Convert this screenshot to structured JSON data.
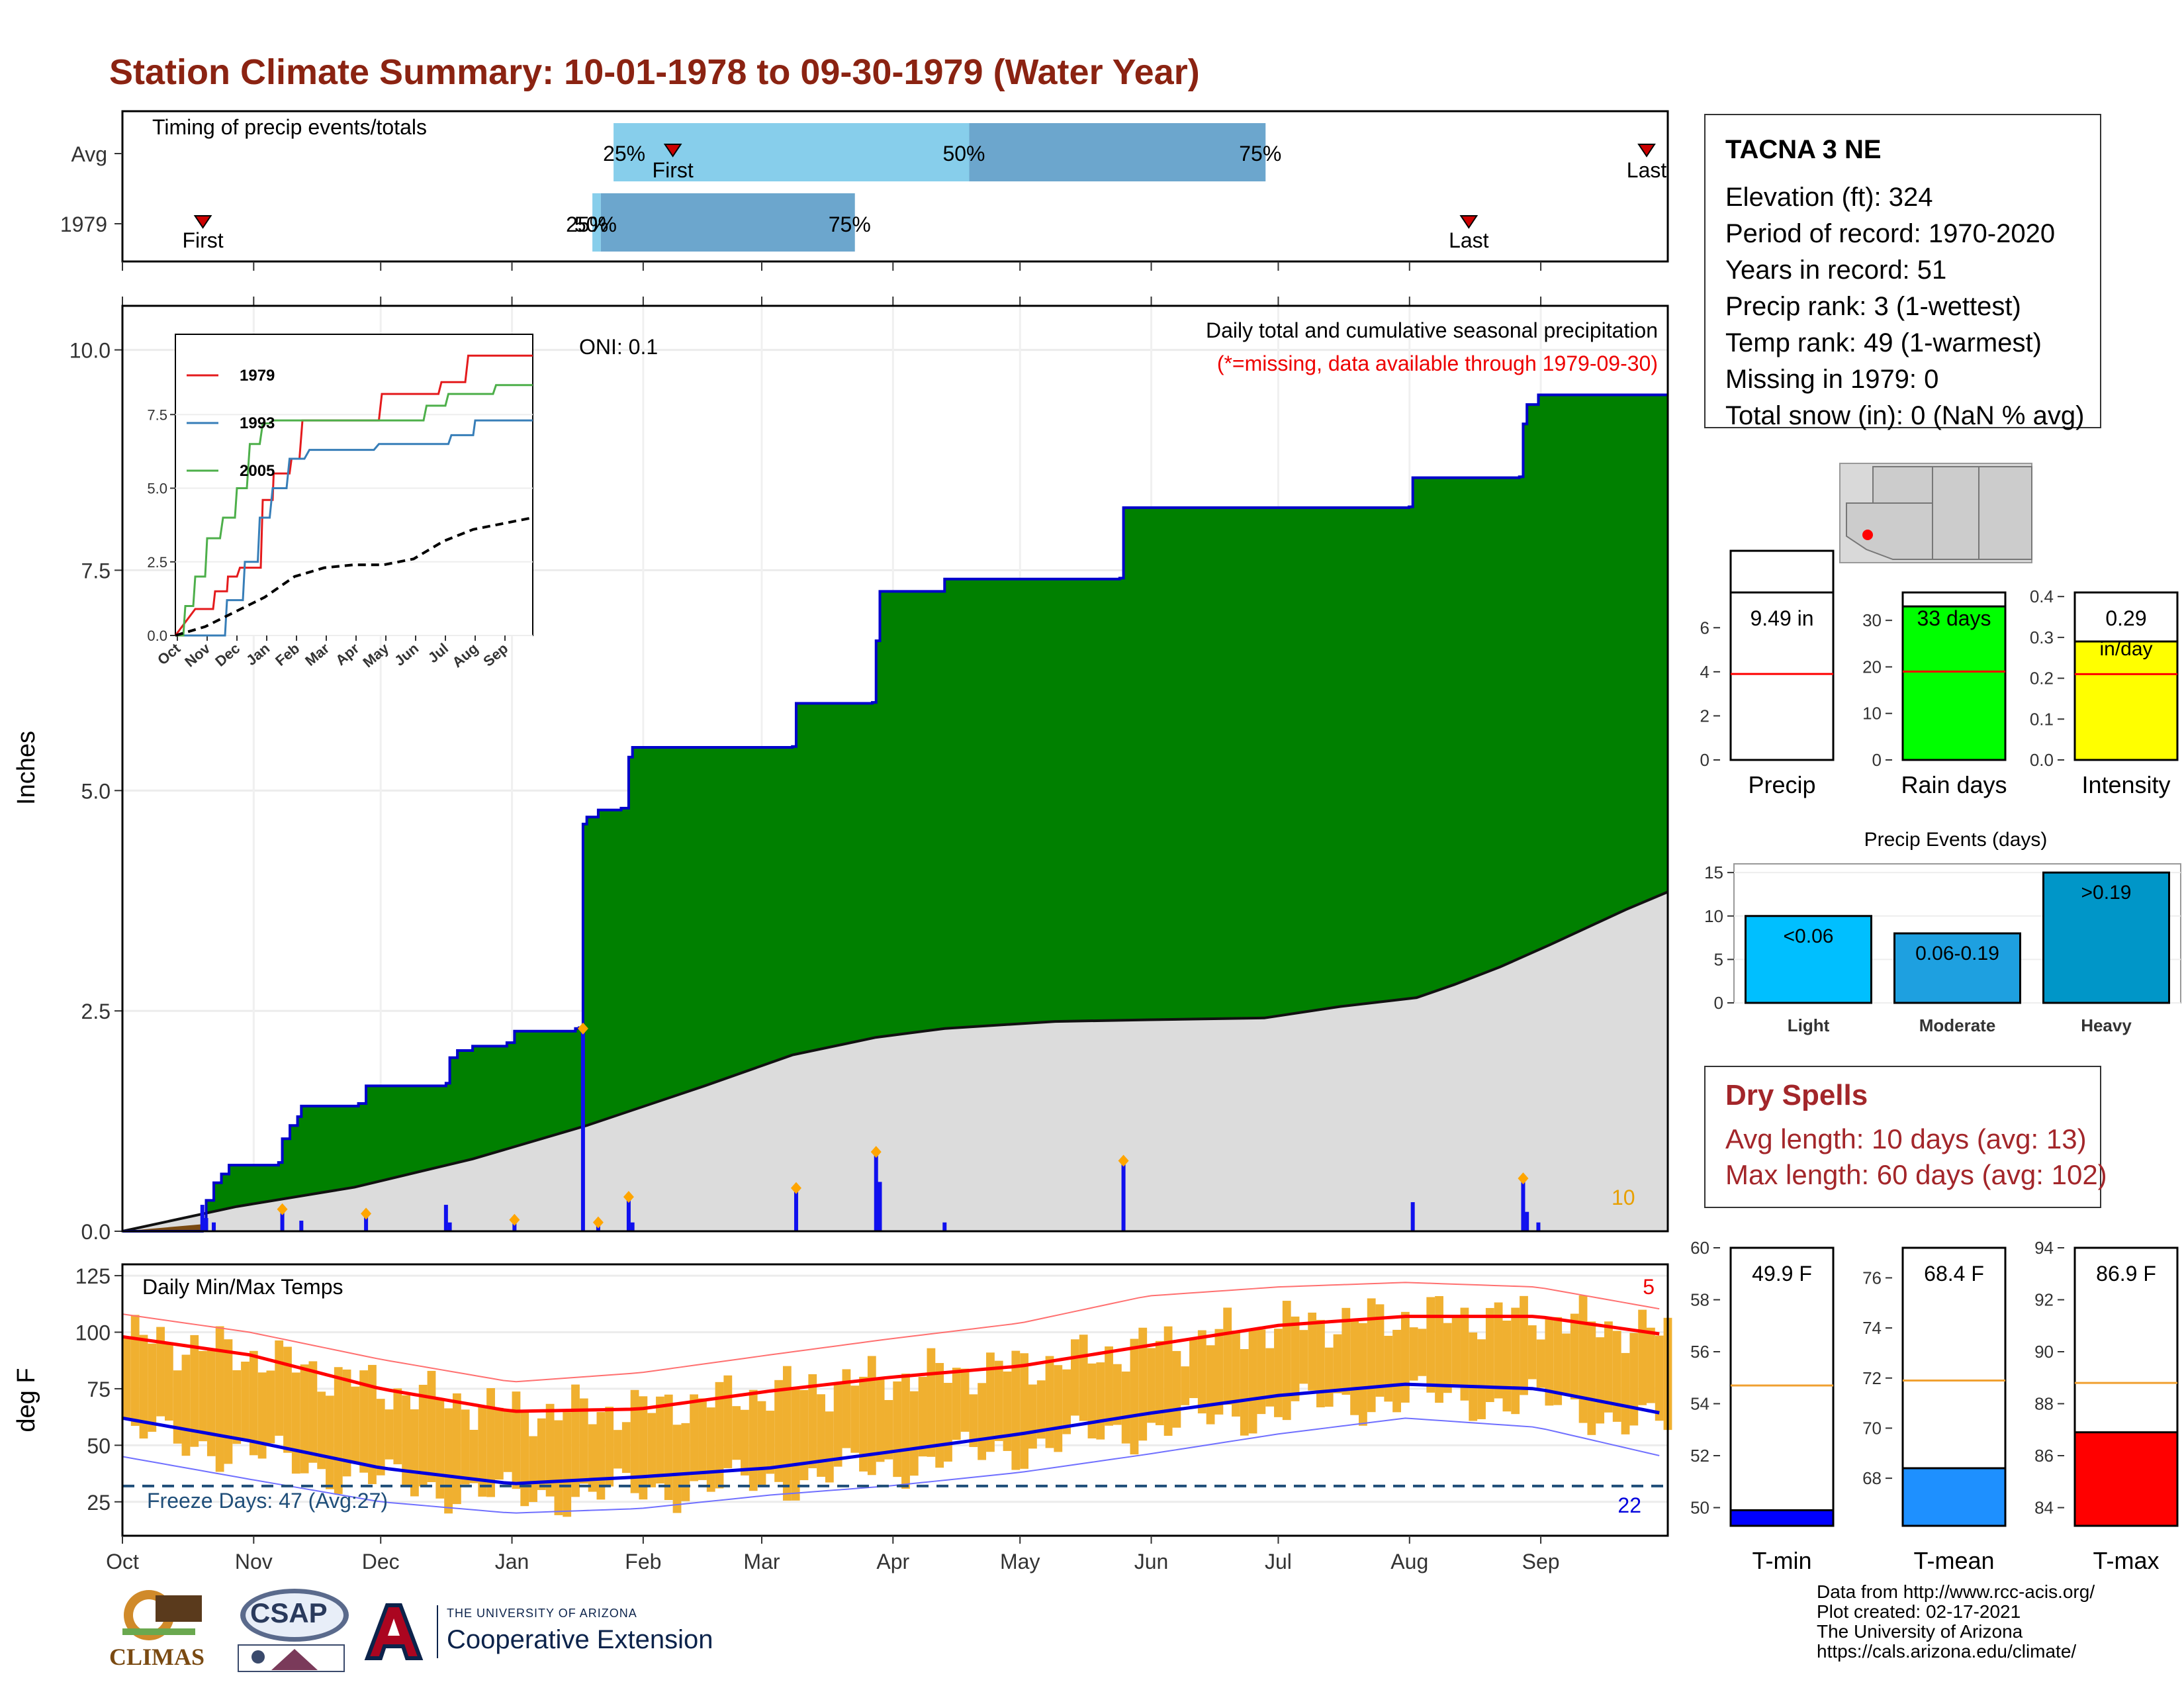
{
  "title": "Station Climate Summary: 10-01-1978 to 09-30-1979 (Water Year)",
  "station": {
    "name": "TACNA 3 NE",
    "lines": [
      "Elevation (ft): 324",
      "Period of record: 1970-2020",
      "Years in record: 51",
      "Precip rank: 3 (1-wettest)",
      "Temp rank: 49 (1-warmest)",
      "Missing in 1979: 0",
      "Total snow (in): 0 (NaN % avg)"
    ]
  },
  "dry_spells": {
    "title": "Dry Spells",
    "avg": "Avg length: 10 days (avg: 13)",
    "max": "Max length: 60 days (avg: 102)"
  },
  "credits": [
    "Data from http://www.rcc-acis.org/",
    "Plot created: 02-17-2021",
    "The University of Arizona",
    "https://cals.arizona.edu/climate/"
  ],
  "logos": {
    "climas": "CLIMAS",
    "csap": "CSAP",
    "ua_small": "THE UNIVERSITY OF ARIZONA",
    "ua_big": "Cooperative Extension"
  },
  "colors": {
    "title": "#8b2312",
    "precip_fill": "#008000",
    "precip_line": "#0000cc",
    "avg_fill": "#dcdcdc",
    "daily_bar": "#1010ee",
    "marker": "#ffa500",
    "temp_bar": "#f0b030",
    "tmax_avg": "#ff0000",
    "tmin_avg": "#0000dd",
    "rain_days": "#00ff00",
    "intensity": "#ffff00",
    "light": "#00bfff",
    "moderate": "#1ea0e0",
    "heavy": "#0096c8",
    "tmin_bar": "#0000ff",
    "tmean_bar": "#1e90ff",
    "tmax_bar": "#ff0000"
  },
  "chart_data": [
    {
      "id": "timing",
      "type": "bar",
      "title": "Timing of precip events/totals",
      "categories": [
        "Avg",
        "1979"
      ],
      "x_ticks": [
        "Oct",
        "Nov",
        "Dec",
        "Jan",
        "Feb",
        "Mar",
        "Apr",
        "May",
        "Jun",
        "Jul",
        "Aug",
        "Sep"
      ],
      "avg": {
        "first": "First",
        "last": "Last",
        "p25": "25%",
        "p50": "50%",
        "p75": "75%"
      },
      "year": {
        "first": "First",
        "last": "Last",
        "p25": "25%",
        "p50": "50%",
        "p75": "75%"
      },
      "markers_day_of_water_year": {
        "avg_first": 130,
        "avg_last": 360,
        "avg_p25": 116,
        "avg_p50": 200,
        "avg_p75": 270,
        "y_first": 19,
        "y_last": 318,
        "y_p25": 111,
        "y_p50": 113,
        "y_p75": 173
      }
    },
    {
      "id": "precip-main",
      "type": "area",
      "title": "Daily total and cumulative seasonal precipitation",
      "subtitle": "(*=missing, data available through 1979-09-30)",
      "oni": "ONI: 0.1",
      "ylabel": "Inches",
      "ylim": [
        0,
        10.5
      ],
      "y_ticks": [
        "0.0",
        "2.5",
        "5.0",
        "7.5",
        "10.0"
      ],
      "x_ticks": [
        "Oct",
        "Nov",
        "Dec",
        "Jan",
        "Feb",
        "Mar",
        "Apr",
        "May",
        "Jun",
        "Jul",
        "Aug",
        "Sep"
      ],
      "corner_label": "10",
      "cumulative_1979": [
        [
          0,
          0
        ],
        [
          21,
          0.05
        ],
        [
          22,
          0.35
        ],
        [
          24,
          0.55
        ],
        [
          26,
          0.65
        ],
        [
          28,
          0.75
        ],
        [
          41,
          0.78
        ],
        [
          42,
          1.05
        ],
        [
          44,
          1.2
        ],
        [
          46,
          1.3
        ],
        [
          47,
          1.42
        ],
        [
          62,
          1.45
        ],
        [
          64,
          1.65
        ],
        [
          85,
          1.68
        ],
        [
          86,
          1.97
        ],
        [
          88,
          2.05
        ],
        [
          92,
          2.1
        ],
        [
          101,
          2.14
        ],
        [
          103,
          2.27
        ],
        [
          119,
          2.3
        ],
        [
          120,
          2.31
        ],
        [
          121,
          4.62
        ],
        [
          122,
          4.7
        ],
        [
          125,
          4.78
        ],
        [
          131,
          4.8
        ],
        [
          133,
          5.38
        ],
        [
          134,
          5.49
        ],
        [
          176,
          5.5
        ],
        [
          177,
          5.99
        ],
        [
          197,
          6.0
        ],
        [
          198,
          6.7
        ],
        [
          199,
          7.26
        ],
        [
          216,
          7.4
        ],
        [
          262,
          7.41
        ],
        [
          263,
          8.21
        ],
        [
          338,
          8.22
        ],
        [
          339,
          8.55
        ],
        [
          367,
          8.56
        ],
        [
          368,
          9.16
        ],
        [
          369,
          9.38
        ],
        [
          372,
          9.49
        ],
        [
          406,
          9.49
        ]
      ],
      "average_cumulative": [
        [
          0,
          0
        ],
        [
          30,
          0.28
        ],
        [
          61,
          0.5
        ],
        [
          92,
          0.82
        ],
        [
          122,
          1.2
        ],
        [
          153,
          1.65
        ],
        [
          176,
          2.0
        ],
        [
          198,
          2.2
        ],
        [
          216,
          2.3
        ],
        [
          245,
          2.38
        ],
        [
          270,
          2.4
        ],
        [
          300,
          2.42
        ],
        [
          320,
          2.55
        ],
        [
          340,
          2.65
        ],
        [
          350,
          2.8
        ],
        [
          362,
          3.0
        ],
        [
          375,
          3.25
        ],
        [
          385,
          3.45
        ],
        [
          395,
          3.65
        ],
        [
          406,
          3.85
        ]
      ],
      "daily_1979": [
        [
          21,
          0.3
        ],
        [
          22,
          0.15
        ],
        [
          24,
          0.1
        ],
        [
          42,
          0.25
        ],
        [
          47,
          0.12
        ],
        [
          64,
          0.2
        ],
        [
          85,
          0.3
        ],
        [
          86,
          0.1
        ],
        [
          103,
          0.13
        ],
        [
          121,
          2.3
        ],
        [
          125,
          0.1
        ],
        [
          133,
          0.39
        ],
        [
          134,
          0.1
        ],
        [
          177,
          0.49
        ],
        [
          198,
          0.9
        ],
        [
          199,
          0.56
        ],
        [
          216,
          0.1
        ],
        [
          263,
          0.8
        ],
        [
          339,
          0.33
        ],
        [
          368,
          0.6
        ],
        [
          369,
          0.22
        ],
        [
          372,
          0.1
        ]
      ],
      "markers": [
        42,
        64,
        103,
        121,
        125,
        133,
        177,
        198,
        263,
        368
      ]
    },
    {
      "id": "precip-inset",
      "type": "line",
      "ylim": [
        0,
        10
      ],
      "y_ticks": [
        "0.0",
        "2.5",
        "5.0",
        "7.5"
      ],
      "x_ticks": [
        "Oct",
        "Nov",
        "Dec",
        "Jan",
        "Feb",
        "Mar",
        "Apr",
        "May",
        "Jun",
        "Jul",
        "Aug",
        "Sep"
      ],
      "series": [
        {
          "name": "1979",
          "color": "#e41a1c",
          "points": [
            [
              0,
              0
            ],
            [
              20,
              0.9
            ],
            [
              38,
              0.9
            ],
            [
              40,
              1.5
            ],
            [
              52,
              1.5
            ],
            [
              53,
              2.0
            ],
            [
              62,
              2.0
            ],
            [
              65,
              2.3
            ],
            [
              86,
              2.3
            ],
            [
              88,
              4.6
            ],
            [
              98,
              4.6
            ],
            [
              99,
              5.5
            ],
            [
              115,
              5.5
            ],
            [
              117,
              6.0
            ],
            [
              125,
              6.0
            ],
            [
              128,
              7.3
            ],
            [
              205,
              7.3
            ],
            [
              208,
              8.2
            ],
            [
              265,
              8.2
            ],
            [
              268,
              8.6
            ],
            [
              292,
              8.6
            ],
            [
              295,
              9.5
            ],
            [
              360,
              9.5
            ]
          ]
        },
        {
          "name": "1993",
          "color": "#377eb8",
          "points": [
            [
              0,
              0
            ],
            [
              50,
              0
            ],
            [
              52,
              1.2
            ],
            [
              68,
              1.2
            ],
            [
              70,
              2.5
            ],
            [
              83,
              2.5
            ],
            [
              85,
              4.0
            ],
            [
              95,
              4.0
            ],
            [
              98,
              5.0
            ],
            [
              112,
              5.0
            ],
            [
              115,
              6.0
            ],
            [
              130,
              6.0
            ],
            [
              135,
              6.3
            ],
            [
              200,
              6.3
            ],
            [
              205,
              6.5
            ],
            [
              275,
              6.5
            ],
            [
              278,
              6.8
            ],
            [
              300,
              6.8
            ],
            [
              302,
              7.3
            ],
            [
              360,
              7.3
            ]
          ]
        },
        {
          "name": "2005",
          "color": "#4daf4a",
          "points": [
            [
              0,
              0
            ],
            [
              8,
              0
            ],
            [
              10,
              1.0
            ],
            [
              18,
              1.0
            ],
            [
              20,
              2.0
            ],
            [
              30,
              2.0
            ],
            [
              32,
              3.3
            ],
            [
              45,
              3.3
            ],
            [
              48,
              4.0
            ],
            [
              60,
              4.0
            ],
            [
              62,
              5.0
            ],
            [
              72,
              5.0
            ],
            [
              75,
              6.5
            ],
            [
              85,
              6.5
            ],
            [
              88,
              7.2
            ],
            [
              95,
              7.2
            ],
            [
              98,
              7.3
            ],
            [
              250,
              7.3
            ],
            [
              253,
              7.8
            ],
            [
              272,
              7.8
            ],
            [
              275,
              8.2
            ],
            [
              320,
              8.2
            ],
            [
              323,
              8.5
            ],
            [
              360,
              8.5
            ]
          ]
        },
        {
          "name": "",
          "color": "#000000",
          "dashed": true,
          "points": [
            [
              0,
              0
            ],
            [
              30,
              0.3
            ],
            [
              60,
              0.8
            ],
            [
              90,
              1.3
            ],
            [
              120,
              2.0
            ],
            [
              150,
              2.3
            ],
            [
              180,
              2.4
            ],
            [
              210,
              2.4
            ],
            [
              240,
              2.6
            ],
            [
              270,
              3.2
            ],
            [
              300,
              3.6
            ],
            [
              330,
              3.8
            ],
            [
              360,
              4.0
            ]
          ]
        }
      ]
    },
    {
      "id": "temps",
      "type": "bar",
      "title": "Daily Min/Max Temps",
      "ylabel": "deg F",
      "ylim": [
        10,
        130
      ],
      "y_ticks": [
        "25",
        "50",
        "75",
        "100",
        "125"
      ],
      "x_ticks": [
        "Oct",
        "Nov",
        "Dec",
        "Jan",
        "Feb",
        "Mar",
        "Apr",
        "May",
        "Jun",
        "Jul",
        "Aug",
        "Sep"
      ],
      "freeze_label": "Freeze Days: 47 (Avg:27)",
      "freeze_line": 32,
      "hot_count": "5",
      "cold_count": "22",
      "avg_max": [
        [
          0,
          98
        ],
        [
          30,
          90
        ],
        [
          61,
          75
        ],
        [
          92,
          65
        ],
        [
          122,
          66
        ],
        [
          153,
          74
        ],
        [
          181,
          80
        ],
        [
          212,
          85
        ],
        [
          242,
          94
        ],
        [
          273,
          103
        ],
        [
          303,
          107
        ],
        [
          334,
          107
        ],
        [
          364,
          99
        ]
      ],
      "avg_min": [
        [
          0,
          62
        ],
        [
          30,
          52
        ],
        [
          61,
          40
        ],
        [
          92,
          33
        ],
        [
          122,
          36
        ],
        [
          153,
          40
        ],
        [
          181,
          47
        ],
        [
          212,
          55
        ],
        [
          242,
          64
        ],
        [
          273,
          72
        ],
        [
          303,
          77
        ],
        [
          334,
          75
        ],
        [
          364,
          64
        ]
      ],
      "rec_max": [
        [
          0,
          108
        ],
        [
          30,
          100
        ],
        [
          61,
          88
        ],
        [
          92,
          78
        ],
        [
          122,
          82
        ],
        [
          153,
          90
        ],
        [
          181,
          97
        ],
        [
          212,
          104
        ],
        [
          242,
          116
        ],
        [
          273,
          120
        ],
        [
          303,
          122
        ],
        [
          334,
          120
        ],
        [
          364,
          110
        ]
      ],
      "rec_min": [
        [
          0,
          45
        ],
        [
          30,
          35
        ],
        [
          61,
          25
        ],
        [
          92,
          20
        ],
        [
          122,
          22
        ],
        [
          153,
          28
        ],
        [
          181,
          32
        ],
        [
          212,
          38
        ],
        [
          242,
          46
        ],
        [
          273,
          55
        ],
        [
          303,
          62
        ],
        [
          334,
          58
        ],
        [
          364,
          45
        ]
      ]
    },
    {
      "id": "precip-bar",
      "type": "bar",
      "label": "Precip",
      "value": 9.49,
      "value_label": "9.49 in",
      "avg": 3.9,
      "ylim": [
        0,
        7.6
      ],
      "y_ticks": [
        "0",
        "2",
        "4",
        "6"
      ]
    },
    {
      "id": "raindays-bar",
      "type": "bar",
      "label": "Rain days",
      "value": 33,
      "value_label": "33 days",
      "avg": 19,
      "ylim": [
        0,
        36
      ],
      "y_ticks": [
        "0",
        "10",
        "20",
        "30"
      ]
    },
    {
      "id": "intensity-bar",
      "type": "bar",
      "label": "Intensity",
      "value": 0.29,
      "value_label": "0.29",
      "unit_label": "in/day",
      "avg": 0.21,
      "ylim": [
        0,
        0.41
      ],
      "y_ticks": [
        "0.0",
        "0.1",
        "0.2",
        "0.3",
        "0.4"
      ]
    },
    {
      "id": "events",
      "type": "bar",
      "title": "Precip Events (days)",
      "categories": [
        "Light",
        "Moderate",
        "Heavy"
      ],
      "values": [
        10,
        8,
        15
      ],
      "bar_labels": [
        "<0.06",
        "0.06-0.19",
        ">0.19"
      ],
      "ylim": [
        0,
        16
      ],
      "y_ticks": [
        "0",
        "5",
        "10",
        "15"
      ]
    },
    {
      "id": "tmin-bar",
      "type": "bar",
      "label": "T-min",
      "value": 49.9,
      "value_label": "49.9 F",
      "avg": 54.7,
      "ylim": [
        49.3,
        60
      ],
      "y_ticks": [
        "50",
        "52",
        "54",
        "56",
        "58",
        "60"
      ]
    },
    {
      "id": "tmean-bar",
      "type": "bar",
      "label": "T-mean",
      "value": 68.4,
      "value_label": "68.4 F",
      "avg": 71.9,
      "ylim": [
        66.1,
        77.2
      ],
      "y_ticks": [
        "68",
        "70",
        "72",
        "74",
        "76"
      ]
    },
    {
      "id": "tmax-bar",
      "type": "bar",
      "label": "T-max",
      "value": 86.9,
      "value_label": "86.9 F",
      "avg": 88.8,
      "ylim": [
        83.3,
        94
      ],
      "y_ticks": [
        "84",
        "86",
        "88",
        "90",
        "92",
        "94"
      ]
    }
  ]
}
